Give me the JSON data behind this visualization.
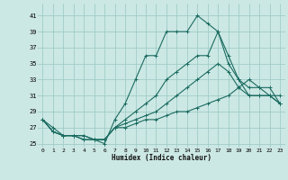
{
  "xlabel": "Humidex (Indice chaleur)",
  "bg_color": "#cce8e4",
  "grid_color": "#9fccc8",
  "line_color": "#1a6b60",
  "xlim": [
    -0.5,
    23.5
  ],
  "ylim": [
    24.5,
    42.5
  ],
  "xticks": [
    0,
    1,
    2,
    3,
    4,
    5,
    6,
    7,
    8,
    9,
    10,
    11,
    12,
    13,
    14,
    15,
    16,
    17,
    18,
    19,
    20,
    21,
    22,
    23
  ],
  "yticks": [
    25,
    27,
    29,
    31,
    33,
    35,
    37,
    39,
    41
  ],
  "series": [
    [
      28,
      27,
      26,
      26,
      26,
      25.5,
      25,
      28,
      30,
      33,
      36,
      36,
      39,
      39,
      39,
      41,
      40,
      39,
      36,
      33,
      32,
      32,
      31,
      30
    ],
    [
      28,
      26.5,
      26,
      26,
      26,
      25.5,
      25.5,
      27,
      28,
      29,
      30,
      31,
      33,
      34,
      35,
      36,
      36,
      39,
      35,
      33,
      31,
      31,
      31,
      31
    ],
    [
      28,
      26.5,
      26,
      26,
      25.5,
      25.5,
      25.5,
      27,
      27.5,
      28,
      28.5,
      29,
      30,
      31,
      32,
      33,
      34,
      35,
      34,
      32,
      31,
      31,
      31,
      30
    ],
    [
      28,
      26.5,
      26,
      26,
      25.5,
      25.5,
      25.5,
      27,
      27,
      27.5,
      28,
      28,
      28.5,
      29,
      29,
      29.5,
      30,
      30.5,
      31,
      32,
      33,
      32,
      32,
      30
    ]
  ]
}
